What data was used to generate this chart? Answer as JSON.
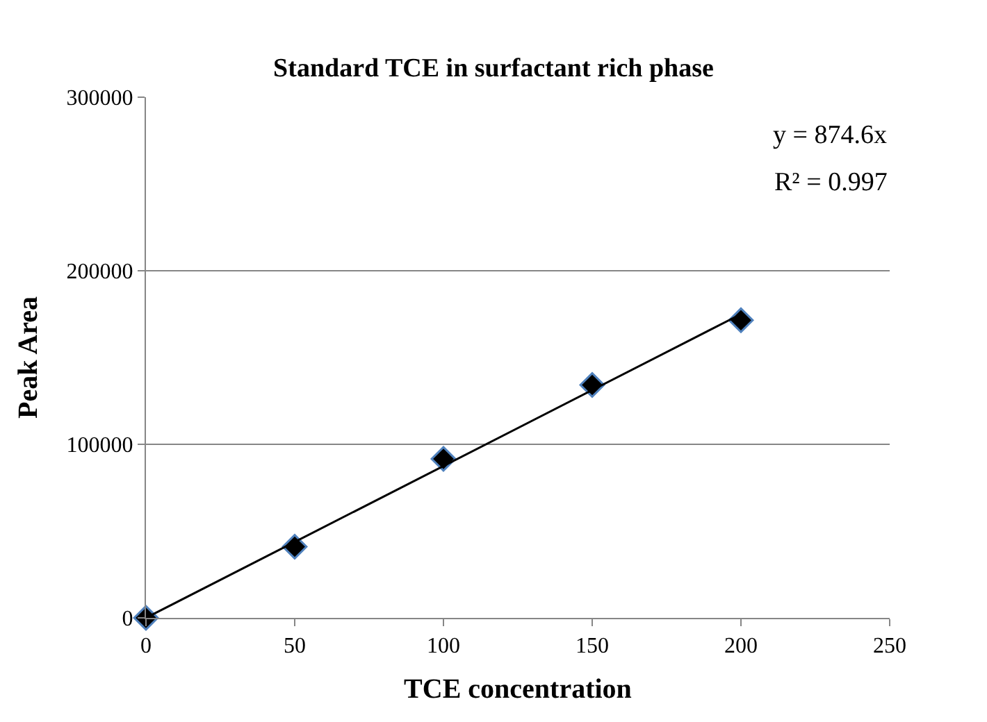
{
  "chart_data": {
    "type": "scatter",
    "title": "Standard TCE in surfactant rich phase",
    "xlabel": "TCE concentration",
    "ylabel": "Peak Area",
    "x": [
      0,
      50,
      100,
      150,
      200
    ],
    "series": [
      {
        "color": "#000000",
        "marker": "diamond",
        "values": [
          0,
          41000,
          91600,
          134200,
          171500
        ]
      },
      {
        "type": "line",
        "color": "#000000",
        "marker": "none",
        "x": [
          0,
          200
        ],
        "values": [
          0,
          175000
        ]
      }
    ],
    "annotations": [
      "y = 874.6x",
      "R² = 0.997"
    ],
    "xlim": [
      0,
      250
    ],
    "xticks": [
      0,
      50,
      100,
      150,
      200,
      250
    ],
    "ylim": [
      0,
      300000
    ],
    "yticks": [
      0,
      100000,
      200000,
      300000
    ],
    "grid": "y"
  }
}
